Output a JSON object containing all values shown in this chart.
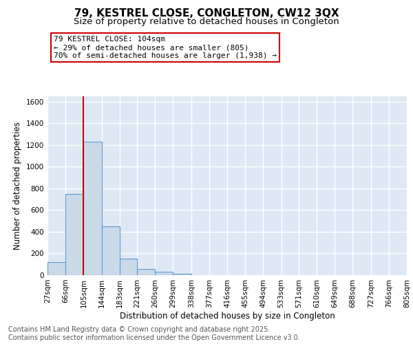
{
  "title1": "79, KESTREL CLOSE, CONGLETON, CW12 3QX",
  "title2": "Size of property relative to detached houses in Congleton",
  "xlabel": "Distribution of detached houses by size in Congleton",
  "ylabel": "Number of detached properties",
  "bin_edges": [
    27,
    66,
    105,
    144,
    183,
    221,
    260,
    299,
    338,
    377,
    416,
    455,
    494,
    533,
    571,
    610,
    649,
    688,
    727,
    766,
    805
  ],
  "bar_heights": [
    120,
    750,
    1230,
    450,
    150,
    60,
    30,
    15,
    0,
    0,
    0,
    0,
    0,
    0,
    0,
    0,
    0,
    0,
    0,
    0
  ],
  "bar_color": "#c9d9e8",
  "bar_edge_color": "#5b9bd5",
  "red_line_x": 105,
  "annotation_line1": "79 KESTREL CLOSE: 104sqm",
  "annotation_line2": "← 29% of detached houses are smaller (805)",
  "annotation_line3": "70% of semi-detached houses are larger (1,938) →",
  "annotation_box_color": "#ffffff",
  "annotation_border_color": "#cc0000",
  "ylim": [
    0,
    1650
  ],
  "yticks": [
    0,
    200,
    400,
    600,
    800,
    1000,
    1200,
    1400,
    1600
  ],
  "background_color": "#dde8f4",
  "grid_color": "#ffffff",
  "footer1": "Contains HM Land Registry data © Crown copyright and database right 2025.",
  "footer2": "Contains public sector information licensed under the Open Government Licence v3.0.",
  "title_fontsize": 11,
  "subtitle_fontsize": 9.5,
  "axis_label_fontsize": 8.5,
  "tick_fontsize": 7.5,
  "annotation_fontsize": 8,
  "footer_fontsize": 7
}
